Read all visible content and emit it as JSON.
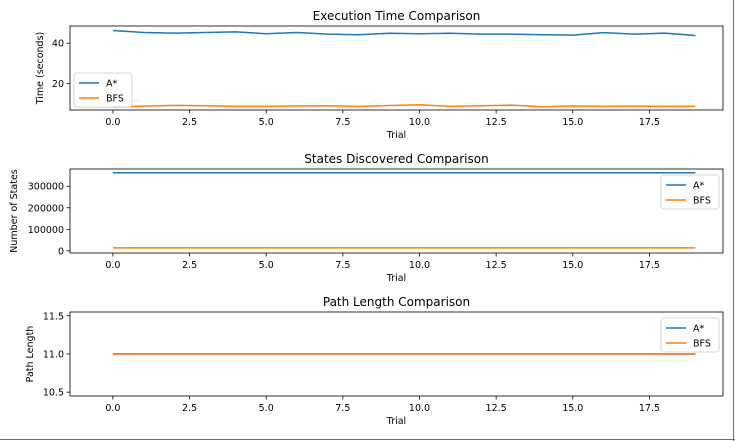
{
  "colors": {
    "astar": "#1f77b4",
    "bfs": "#ff7f0e"
  },
  "chart_data": [
    {
      "type": "line",
      "title": "Execution Time Comparison",
      "xlabel": "Trial",
      "ylabel": "Time (seconds)",
      "xlim": [
        -1.4,
        19.9
      ],
      "ylim": [
        7.0,
        48.5
      ],
      "xticks": [
        0.0,
        2.5,
        5.0,
        7.5,
        10.0,
        12.5,
        15.0,
        17.5
      ],
      "xtick_labels": [
        "0.0",
        "2.5",
        "5.0",
        "7.5",
        "10.0",
        "12.5",
        "15.0",
        "17.5"
      ],
      "yticks": [
        20,
        40
      ],
      "ytick_labels": [
        "20",
        "40"
      ],
      "legend_position": "lower-left",
      "x": [
        0,
        1,
        2,
        3,
        4,
        5,
        6,
        7,
        8,
        9,
        10,
        11,
        12,
        13,
        14,
        15,
        16,
        17,
        18,
        19
      ],
      "series": [
        {
          "name": "A*",
          "color_key": "astar",
          "values": [
            46.3,
            45.3,
            45.0,
            45.3,
            45.6,
            44.7,
            45.3,
            44.5,
            44.2,
            44.9,
            44.7,
            44.9,
            44.5,
            44.5,
            44.2,
            44.0,
            45.2,
            44.5,
            45.0,
            43.8
          ]
        },
        {
          "name": "BFS",
          "color_key": "bfs",
          "values": [
            8.5,
            8.9,
            9.3,
            9.1,
            8.8,
            8.8,
            9.0,
            9.1,
            8.7,
            9.2,
            9.6,
            8.8,
            9.1,
            9.4,
            8.6,
            9.0,
            8.8,
            8.9,
            8.8,
            8.8
          ]
        }
      ]
    },
    {
      "type": "line",
      "title": "States Discovered Comparison",
      "xlabel": "Trial",
      "ylabel": "Number of States",
      "xlim": [
        -1.4,
        19.9
      ],
      "ylim": [
        -10000,
        380000
      ],
      "xticks": [
        0.0,
        2.5,
        5.0,
        7.5,
        10.0,
        12.5,
        15.0,
        17.5
      ],
      "xtick_labels": [
        "0.0",
        "2.5",
        "5.0",
        "7.5",
        "10.0",
        "12.5",
        "15.0",
        "17.5"
      ],
      "yticks": [
        0,
        100000,
        200000,
        300000
      ],
      "ytick_labels": [
        "0",
        "100000",
        "200000",
        "300000"
      ],
      "legend_position": "upper-right",
      "x": [
        0,
        1,
        2,
        3,
        4,
        5,
        6,
        7,
        8,
        9,
        10,
        11,
        12,
        13,
        14,
        15,
        16,
        17,
        18,
        19
      ],
      "series": [
        {
          "name": "A*",
          "color_key": "astar",
          "values": [
            362880,
            362880,
            362880,
            362880,
            362880,
            362880,
            362880,
            362880,
            362880,
            362880,
            362880,
            362880,
            362880,
            362880,
            362880,
            362880,
            362880,
            362880,
            362880,
            362880
          ]
        },
        {
          "name": "BFS",
          "color_key": "bfs",
          "values": [
            14000,
            14000,
            14000,
            14000,
            14000,
            14000,
            14000,
            14000,
            14000,
            14000,
            14000,
            14000,
            14000,
            14000,
            14000,
            14000,
            14000,
            14000,
            14000,
            14000
          ]
        }
      ]
    },
    {
      "type": "line",
      "title": "Path Length Comparison",
      "xlabel": "Trial",
      "ylabel": "Path Length",
      "xlim": [
        -1.4,
        19.9
      ],
      "ylim": [
        10.45,
        11.55
      ],
      "xticks": [
        0.0,
        2.5,
        5.0,
        7.5,
        10.0,
        12.5,
        15.0,
        17.5
      ],
      "xtick_labels": [
        "0.0",
        "2.5",
        "5.0",
        "7.5",
        "10.0",
        "12.5",
        "15.0",
        "17.5"
      ],
      "yticks": [
        10.5,
        11.0,
        11.5
      ],
      "ytick_labels": [
        "10.5",
        "11.0",
        "11.5"
      ],
      "legend_position": "upper-right",
      "x": [
        0,
        1,
        2,
        3,
        4,
        5,
        6,
        7,
        8,
        9,
        10,
        11,
        12,
        13,
        14,
        15,
        16,
        17,
        18,
        19
      ],
      "series": [
        {
          "name": "A*",
          "color_key": "astar",
          "values": [
            11,
            11,
            11,
            11,
            11,
            11,
            11,
            11,
            11,
            11,
            11,
            11,
            11,
            11,
            11,
            11,
            11,
            11,
            11,
            11
          ]
        },
        {
          "name": "BFS",
          "color_key": "bfs",
          "values": [
            11,
            11,
            11,
            11,
            11,
            11,
            11,
            11,
            11,
            11,
            11,
            11,
            11,
            11,
            11,
            11,
            11,
            11,
            11,
            11
          ]
        }
      ]
    }
  ]
}
